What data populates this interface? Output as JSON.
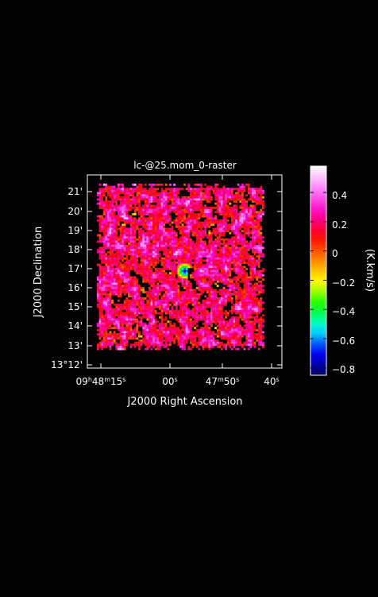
{
  "chart_data": {
    "type": "heatmap",
    "title": "lc-@25.mom_0-raster",
    "xlabel": "J2000 Right Ascension",
    "ylabel": "J2000 Declination",
    "x_ticks": [
      {
        "pre": "09",
        "s1": "h",
        "mid": "48",
        "s2": "m",
        "post": "15",
        "s3": "s"
      },
      {
        "pre": "",
        "s1": "",
        "mid": "",
        "s2": "",
        "post": "00",
        "s3": "s"
      },
      {
        "pre": "",
        "s1": "",
        "mid": "47",
        "s2": "m",
        "post": "50",
        "s3": "s"
      },
      {
        "pre": "",
        "s1": "",
        "mid": "",
        "s2": "",
        "post": "40",
        "s3": "s"
      }
    ],
    "y_ticks": [
      "21'",
      "20'",
      "19'",
      "18'",
      "17'",
      "16'",
      "15'",
      "14'",
      "13'",
      "13°12'"
    ],
    "colorbar": {
      "label": "(K.km/s)",
      "range": [
        -0.85,
        0.58
      ],
      "ticks": [
        "0.4",
        "0.2",
        "0",
        "−0.2",
        "−0.4",
        "−0.6",
        "−0.8"
      ],
      "tick_values": [
        0.4,
        0.2,
        0.0,
        -0.2,
        -0.4,
        -0.6,
        -0.8
      ],
      "colors": [
        "#000060",
        "#0000ff",
        "#00ffff",
        "#00ff00",
        "#ffff00",
        "#ff8000",
        "#ff0000",
        "#ff00c0",
        "#ff80ff",
        "#ffffff"
      ]
    },
    "features": [
      {
        "description": "compact negative source",
        "value": -0.85,
        "location": "09h47m57s, 16'50\""
      }
    ],
    "grid": false,
    "background": "#000000"
  }
}
